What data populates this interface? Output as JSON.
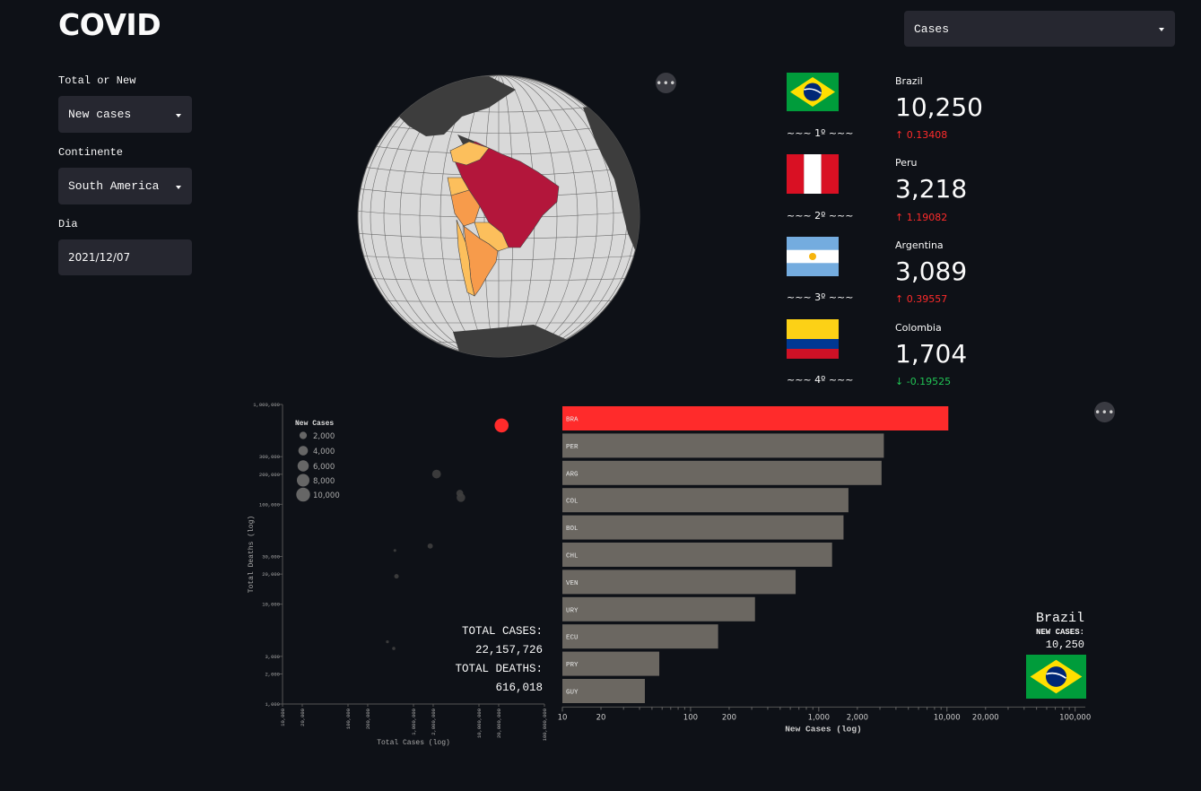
{
  "header": {
    "title": "COVID"
  },
  "metric_select": {
    "value": "Cases"
  },
  "sidebar": {
    "total_or_new": {
      "label": "Total or New",
      "value": "New cases"
    },
    "continent": {
      "label": "Continente",
      "value": "South America"
    },
    "day": {
      "label": "Dia",
      "value": "2021/12/07"
    }
  },
  "menu_icon": "more-horizontal-icon",
  "ranking": [
    {
      "flag": "brazil",
      "name": "Brazil",
      "value": "10,250",
      "delta": "0.13408",
      "dir": "up",
      "rank": "~~~ 1º ~~~"
    },
    {
      "flag": "peru",
      "name": "Peru",
      "value": "3,218",
      "delta": "1.19082",
      "dir": "up",
      "rank": "~~~ 2º ~~~"
    },
    {
      "flag": "argentina",
      "name": "Argentina",
      "value": "3,089",
      "delta": "0.39557",
      "dir": "up",
      "rank": "~~~ 3º ~~~"
    },
    {
      "flag": "colombia",
      "name": "Colombia",
      "value": "1,704",
      "delta": "-0.19525",
      "dir": "down",
      "rank": "~~~ 4º ~~~"
    }
  ],
  "colors": {
    "highlight": "#ff2b2b",
    "bar_gray": "#6b6761",
    "up": "#ff2b2b",
    "down": "#21c354",
    "bg": "#0e1117",
    "widget": "#262730"
  },
  "summary": {
    "total_cases_label": "TOTAL CASES:",
    "total_cases": "22,157,726",
    "total_deaths_label": "TOTAL DEATHS:",
    "total_deaths": "616,018",
    "country": "Brazil",
    "new_cases_label": "NEW CASES:",
    "new_cases": "10,250"
  },
  "chart_data": [
    {
      "type": "scatter",
      "xlabel": "Total Cases (log)",
      "ylabel": "Total Deaths (log)",
      "x_scale": "log",
      "y_scale": "log",
      "xlim": [
        10000,
        100000000
      ],
      "ylim": [
        1000,
        1000000
      ],
      "x_ticks": [
        "10,000",
        "20,000",
        "100,000",
        "200,000",
        "1,000,000",
        "2,000,000",
        "10,000,000",
        "20,000,000",
        "100,000,000"
      ],
      "y_ticks": [
        "1,000",
        "2,000",
        "3,000",
        "10,000",
        "20,000",
        "30,000",
        "100,000",
        "200,000",
        "300,000",
        "1,000,000"
      ],
      "legend_title": "New Cases",
      "legend": [
        "2,000",
        "4,000",
        "6,000",
        "8,000",
        "10,000"
      ],
      "points": [
        {
          "x": 22157726,
          "y": 616018,
          "size": 10250,
          "highlight": true
        },
        {
          "x": 2250000,
          "y": 201000,
          "size": 3218
        },
        {
          "x": 5300000,
          "y": 116700,
          "size": 3089
        },
        {
          "x": 5100000,
          "y": 128900,
          "size": 1704
        },
        {
          "x": 1800000,
          "y": 38200,
          "size": 700
        },
        {
          "x": 550000,
          "y": 19000,
          "size": 400
        },
        {
          "x": 500000,
          "y": 3600,
          "size": 80
        },
        {
          "x": 400000,
          "y": 4200,
          "size": 40
        },
        {
          "x": 520000,
          "y": 34500,
          "size": 30
        }
      ],
      "legend_placement": "top-left",
      "grid": false
    },
    {
      "type": "bar",
      "orientation": "horizontal",
      "xlabel": "New Cases (log)",
      "x_scale": "log",
      "xlim": [
        10,
        120000
      ],
      "x_ticks": [
        "10",
        "20",
        "100",
        "200",
        "1,000",
        "2,000",
        "10,000",
        "20,000",
        "100,000"
      ],
      "categories": [
        "BRA",
        "PER",
        "ARG",
        "COL",
        "BOL",
        "CHL",
        "VEN",
        "URY",
        "ECU",
        "PRY",
        "GUY"
      ],
      "values": [
        10250,
        3218,
        3089,
        1704,
        1560,
        1270,
        660,
        318,
        164,
        57,
        44
      ],
      "highlight": "BRA",
      "grid": false
    }
  ]
}
